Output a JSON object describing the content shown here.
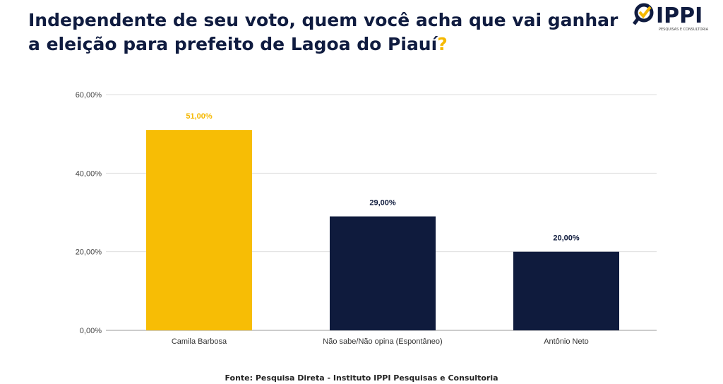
{
  "title": {
    "text": "Independente de seu voto, quem você acha que vai ganhar a eleição para prefeito de Lagoa do Piauí",
    "question_mark": "?"
  },
  "logo": {
    "name": "IPPI",
    "tagline": "PESQUISAS E CONSULTORIA"
  },
  "footer": "Fonte: Pesquisa Direta - Instituto IPPI Pesquisas e Consultoria",
  "chart_data": {
    "type": "bar",
    "categories": [
      "Camila Barbosa",
      "Não sabe/Não opina (Espontâneo)",
      "Antônio Neto"
    ],
    "values": [
      51,
      29,
      20
    ],
    "data_labels": [
      "51,00%",
      "29,00%",
      "20,00%"
    ],
    "colors": [
      "#f7bd05",
      "#0f1b3d",
      "#0f1b3d"
    ],
    "label_colors": [
      "#f5b800",
      "#0f1b3d",
      "#0f1b3d"
    ],
    "ylim": [
      0,
      60
    ],
    "yticks": [
      0,
      20,
      40,
      60
    ],
    "ytick_labels": [
      "0,00%",
      "20,00%",
      "40,00%",
      "60,00%"
    ],
    "grid": true,
    "legend": "none"
  }
}
